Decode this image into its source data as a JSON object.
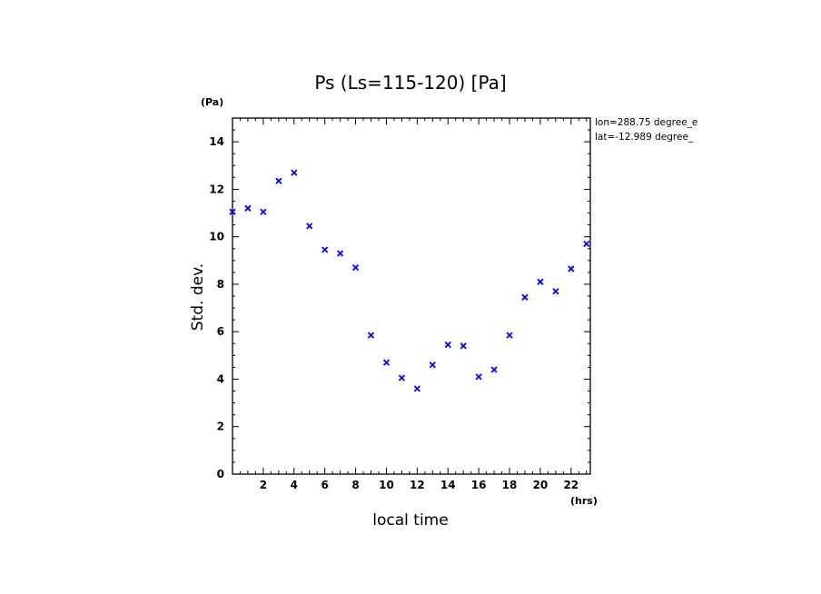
{
  "chart_data": {
    "type": "scatter",
    "title": "Ps (Ls=115-120) [Pa]",
    "xlabel": "local time",
    "ylabel": "Std. dev.",
    "x_unit": "(hrs)",
    "y_unit": "(Pa)",
    "xlim": [
      0,
      23.25
    ],
    "ylim": [
      0,
      15
    ],
    "xticks": [
      2,
      4,
      6,
      8,
      10,
      12,
      14,
      16,
      18,
      20,
      22
    ],
    "yticks": [
      0,
      2,
      4,
      6,
      8,
      10,
      12,
      14
    ],
    "annotations": [
      "lon=288.75 degree_e",
      "lat=-12.989 degree_"
    ],
    "marker": "x",
    "marker_color": "#0000ff",
    "grid": false,
    "x": [
      0.0,
      1.0,
      2.0,
      3.0,
      4.0,
      5.0,
      6.0,
      7.0,
      8.0,
      9.0,
      10.0,
      11.0,
      12.0,
      13.0,
      14.0,
      15.0,
      16.0,
      17.0,
      18.0,
      19.0,
      20.0,
      21.0,
      22.0,
      23.0
    ],
    "y": [
      11.05,
      11.2,
      11.05,
      12.35,
      12.7,
      10.45,
      9.45,
      9.3,
      8.7,
      5.85,
      4.7,
      4.05,
      3.6,
      4.6,
      5.45,
      5.4,
      4.1,
      4.4,
      5.85,
      7.45,
      8.1,
      7.7,
      8.65,
      9.7
    ]
  }
}
